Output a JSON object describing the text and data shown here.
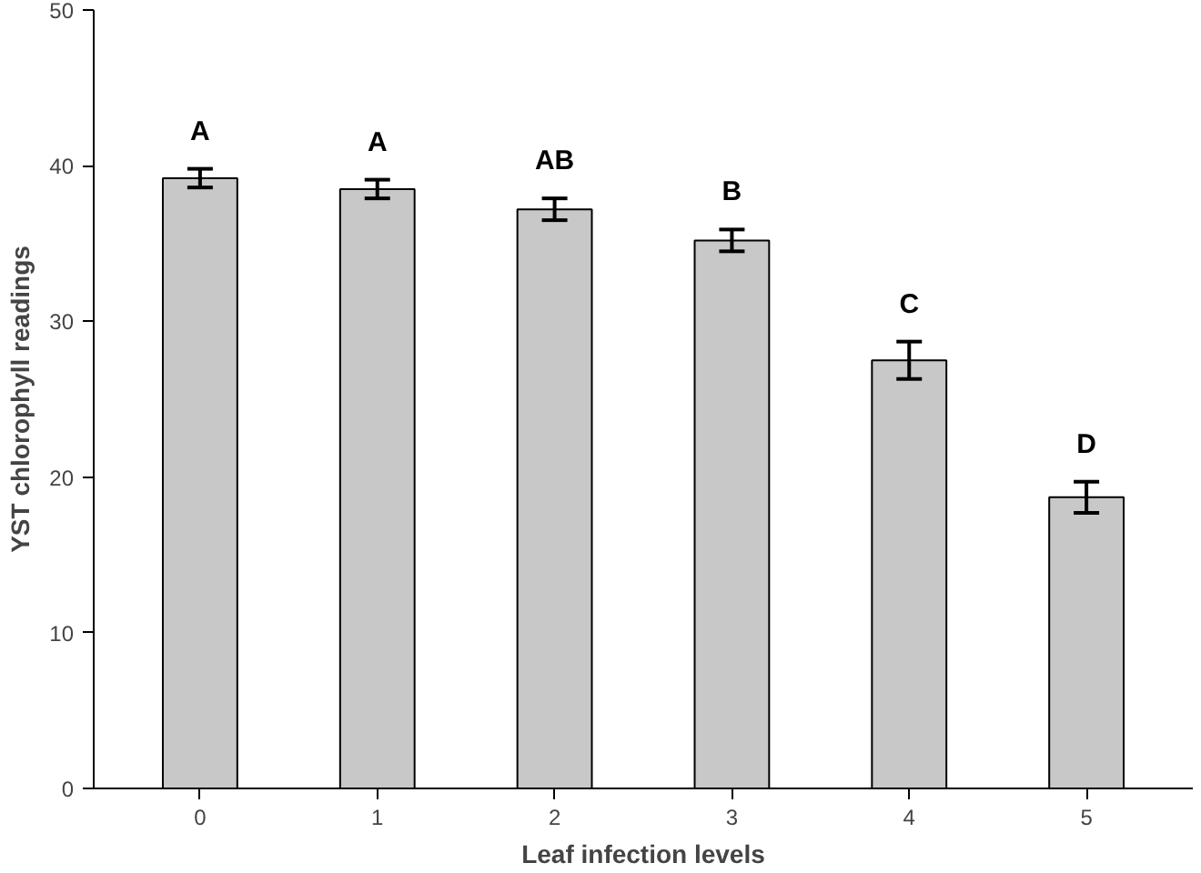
{
  "chart_data": {
    "type": "bar",
    "xlabel": "Leaf infection levels",
    "ylabel": "YST chlorophyll readings",
    "categories": [
      "0",
      "1",
      "2",
      "3",
      "4",
      "5"
    ],
    "values": [
      39.2,
      38.5,
      37.2,
      35.2,
      27.5,
      18.7
    ],
    "errors": [
      0.6,
      0.6,
      0.7,
      0.7,
      1.2,
      1.0
    ],
    "color": "#c8c8c8",
    "ylim": [
      0,
      50
    ],
    "yticks": [
      0,
      10,
      20,
      30,
      40,
      50
    ],
    "grid": false,
    "annotations": [
      "A",
      "A",
      "AB",
      "B",
      "C",
      "D"
    ]
  }
}
